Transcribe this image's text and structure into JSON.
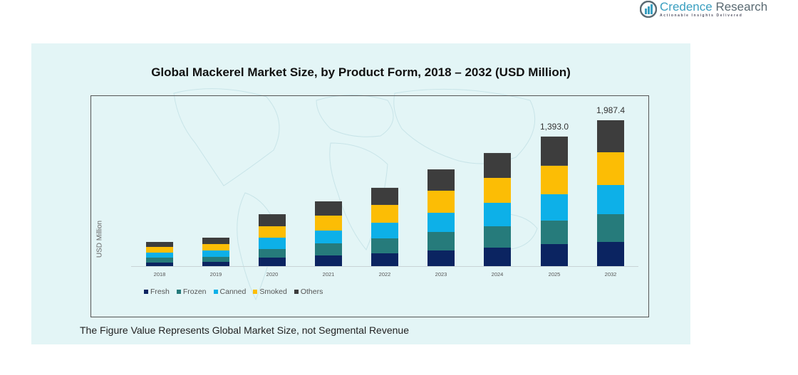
{
  "brand": {
    "name_first": "Credence",
    "name_second": "Research",
    "tagline": "Actionable Insights Delivered"
  },
  "footnote": "The Figure Value Represents Global Market Size, not Segmental Revenue",
  "colors": {
    "Fresh": "#0b2461",
    "Frozen": "#267b7b",
    "Canned": "#0db0e8",
    "Smoked": "#fcbd05",
    "Others": "#3d3d3d",
    "panel": "#e3f5f6",
    "brand": "#3a9fc0"
  },
  "chart_data": {
    "type": "bar",
    "stacked": true,
    "title": "Global Mackerel Market Size, by Product Form, 2018 – 2032 (USD Million)",
    "xlabel": "",
    "ylabel": "USD Million",
    "grid": false,
    "legend_position": "bottom-left",
    "categories": [
      "2018",
      "2019",
      "2020",
      "2021",
      "2022",
      "2023",
      "2024",
      "2025",
      "2032"
    ],
    "series": [
      {
        "name": "Fresh",
        "values": [
          38.2,
          45.9,
          91.8,
          114.7,
          137.8,
          168.3,
          198.9,
          237.3,
          329.6
        ]
      },
      {
        "name": "Frozen",
        "values": [
          53.6,
          53.6,
          91.8,
          130.1,
          160.7,
          198.9,
          229.5,
          252.6,
          378.1
        ]
      },
      {
        "name": "Canned",
        "values": [
          53.6,
          68.9,
          122.4,
          137.7,
          168.4,
          206.6,
          252.5,
          283.2,
          397.5
        ]
      },
      {
        "name": "Smoked",
        "values": [
          61.2,
          68.9,
          122.4,
          160.7,
          191.3,
          237.2,
          267.8,
          306.2,
          446.0
        ]
      },
      {
        "name": "Others",
        "values": [
          53.4,
          68.7,
          129.6,
          153.0,
          183.8,
          229.0,
          267.3,
          313.7,
          436.2
        ]
      }
    ],
    "totals": [
      260,
      306,
      558,
      696.2,
      842,
      1040,
      1216,
      1393.0,
      1987.4
    ],
    "data_labels": [
      {
        "category": "2025",
        "text": "1,393.0"
      },
      {
        "category": "2032",
        "text": "1,987.4"
      }
    ]
  }
}
